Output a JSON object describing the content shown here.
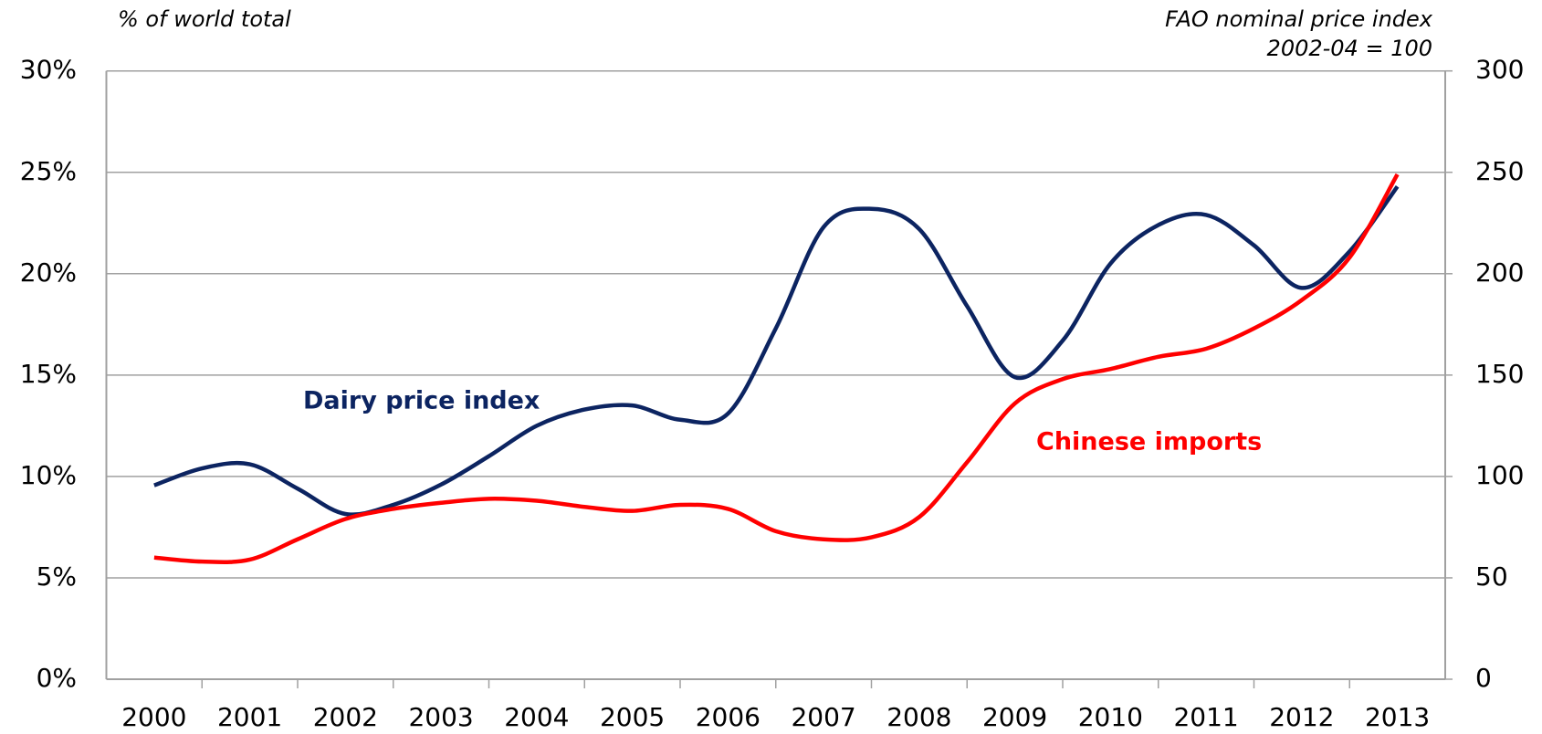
{
  "chart_data": {
    "type": "line",
    "y_label": "% of world total",
    "y2_label": [
      "FAO nominal price index",
      "2002-04 = 100"
    ],
    "x": [
      2000,
      2000.5,
      2001,
      2001.5,
      2002,
      2002.5,
      2003,
      2003.5,
      2004,
      2004.5,
      2005,
      2005.5,
      2006,
      2006.5,
      2007,
      2007.5,
      2008,
      2008.5,
      2009,
      2009.5,
      2010,
      2010.5,
      2011,
      2011.5,
      2012,
      2012.5,
      2013
    ],
    "xlim": [
      1999.5,
      2013.5
    ],
    "xticks": [
      2000,
      2001,
      2002,
      2003,
      2004,
      2005,
      2006,
      2007,
      2008,
      2009,
      2010,
      2011,
      2012,
      2013
    ],
    "ylim": [
      0,
      30
    ],
    "yticks": [
      {
        "value": 0,
        "label": "0%"
      },
      {
        "value": 5,
        "label": "5%"
      },
      {
        "value": 10,
        "label": "10%"
      },
      {
        "value": 15,
        "label": "15%"
      },
      {
        "value": 20,
        "label": "20%"
      },
      {
        "value": 25,
        "label": "25%"
      },
      {
        "value": 30,
        "label": "30%"
      }
    ],
    "y2lim": [
      0,
      300
    ],
    "y2ticks": [
      0,
      50,
      100,
      150,
      200,
      250,
      300
    ],
    "grid": true,
    "series": [
      {
        "name": "Dairy price index",
        "color": "#0c2461",
        "axis": "y2",
        "values": [
          95.6,
          104,
          106,
          94,
          81.5,
          86,
          96,
          110,
          125,
          133,
          135,
          128,
          131,
          173,
          223,
          232,
          222,
          184,
          149,
          167,
          205,
          224,
          229,
          214,
          193,
          211,
          243
        ]
      },
      {
        "name": "Chinese imports",
        "color": "#ff0000",
        "values": [
          6.0,
          5.8,
          5.9,
          6.9,
          7.9,
          8.4,
          8.7,
          8.9,
          8.8,
          8.5,
          8.3,
          8.6,
          8.4,
          7.3,
          6.9,
          7.0,
          8.0,
          10.7,
          13.6,
          14.8,
          15.3,
          15.9,
          16.3,
          17.3,
          18.7,
          20.8,
          24.9
        ]
      }
    ]
  }
}
